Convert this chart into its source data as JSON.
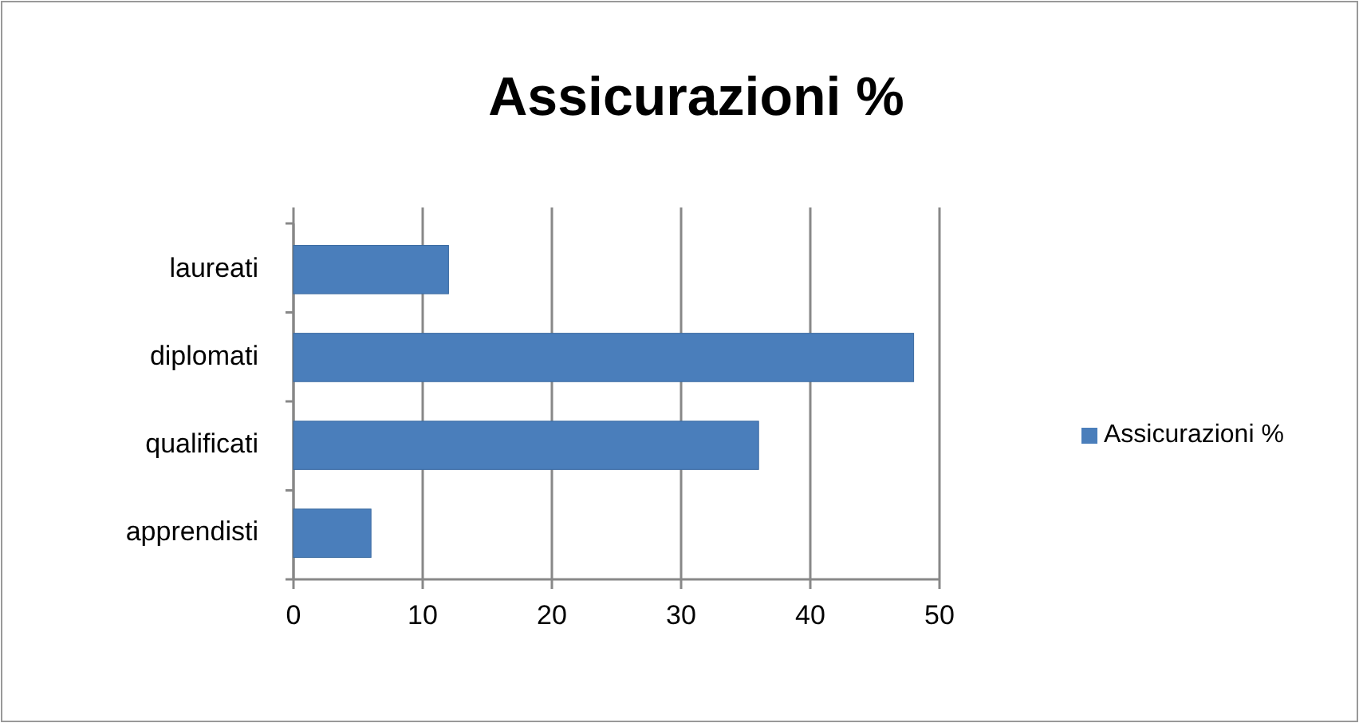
{
  "chart_data": {
    "type": "bar",
    "orientation": "horizontal",
    "title": "Assicurazioni %",
    "categories": [
      "laureati",
      "diplomati",
      "qualificati",
      "apprendisti"
    ],
    "series": [
      {
        "name": "Assicurazioni %",
        "color": "#4a7ebb",
        "values": [
          12,
          48,
          36,
          6
        ]
      }
    ],
    "xlim": [
      0,
      50
    ],
    "xticks": [
      0,
      10,
      20,
      30,
      40,
      50
    ],
    "grid": "x",
    "legend": "right"
  }
}
